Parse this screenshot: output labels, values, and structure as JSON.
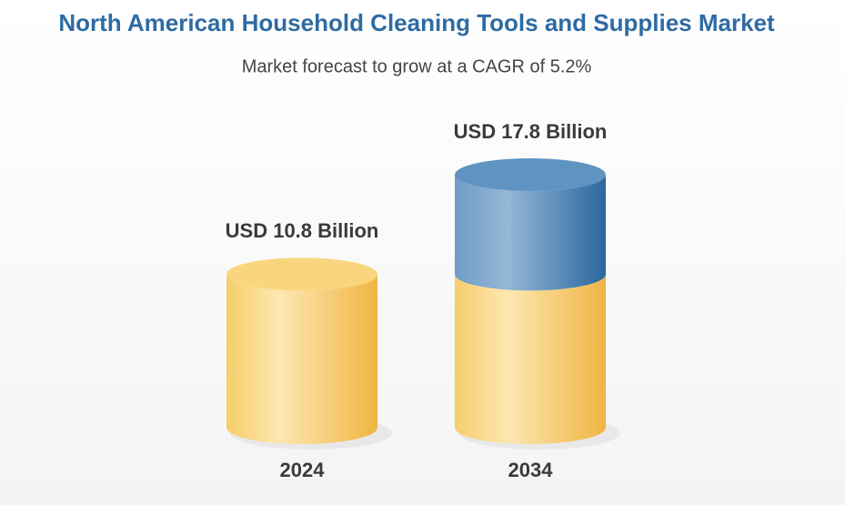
{
  "chart_data": {
    "type": "cylinder",
    "title": "North American Household Cleaning Tools and Supplies Market",
    "subtitle": "Market forecast to grow at a CAGR of 5.2%",
    "categories": [
      "2024",
      "2034"
    ],
    "values": [
      10.8,
      17.8
    ],
    "value_labels": [
      "USD 10.8 Billion",
      "USD 17.8 Billion"
    ],
    "color": "#f5c453",
    "growth_color": "#3f7cb0"
  }
}
